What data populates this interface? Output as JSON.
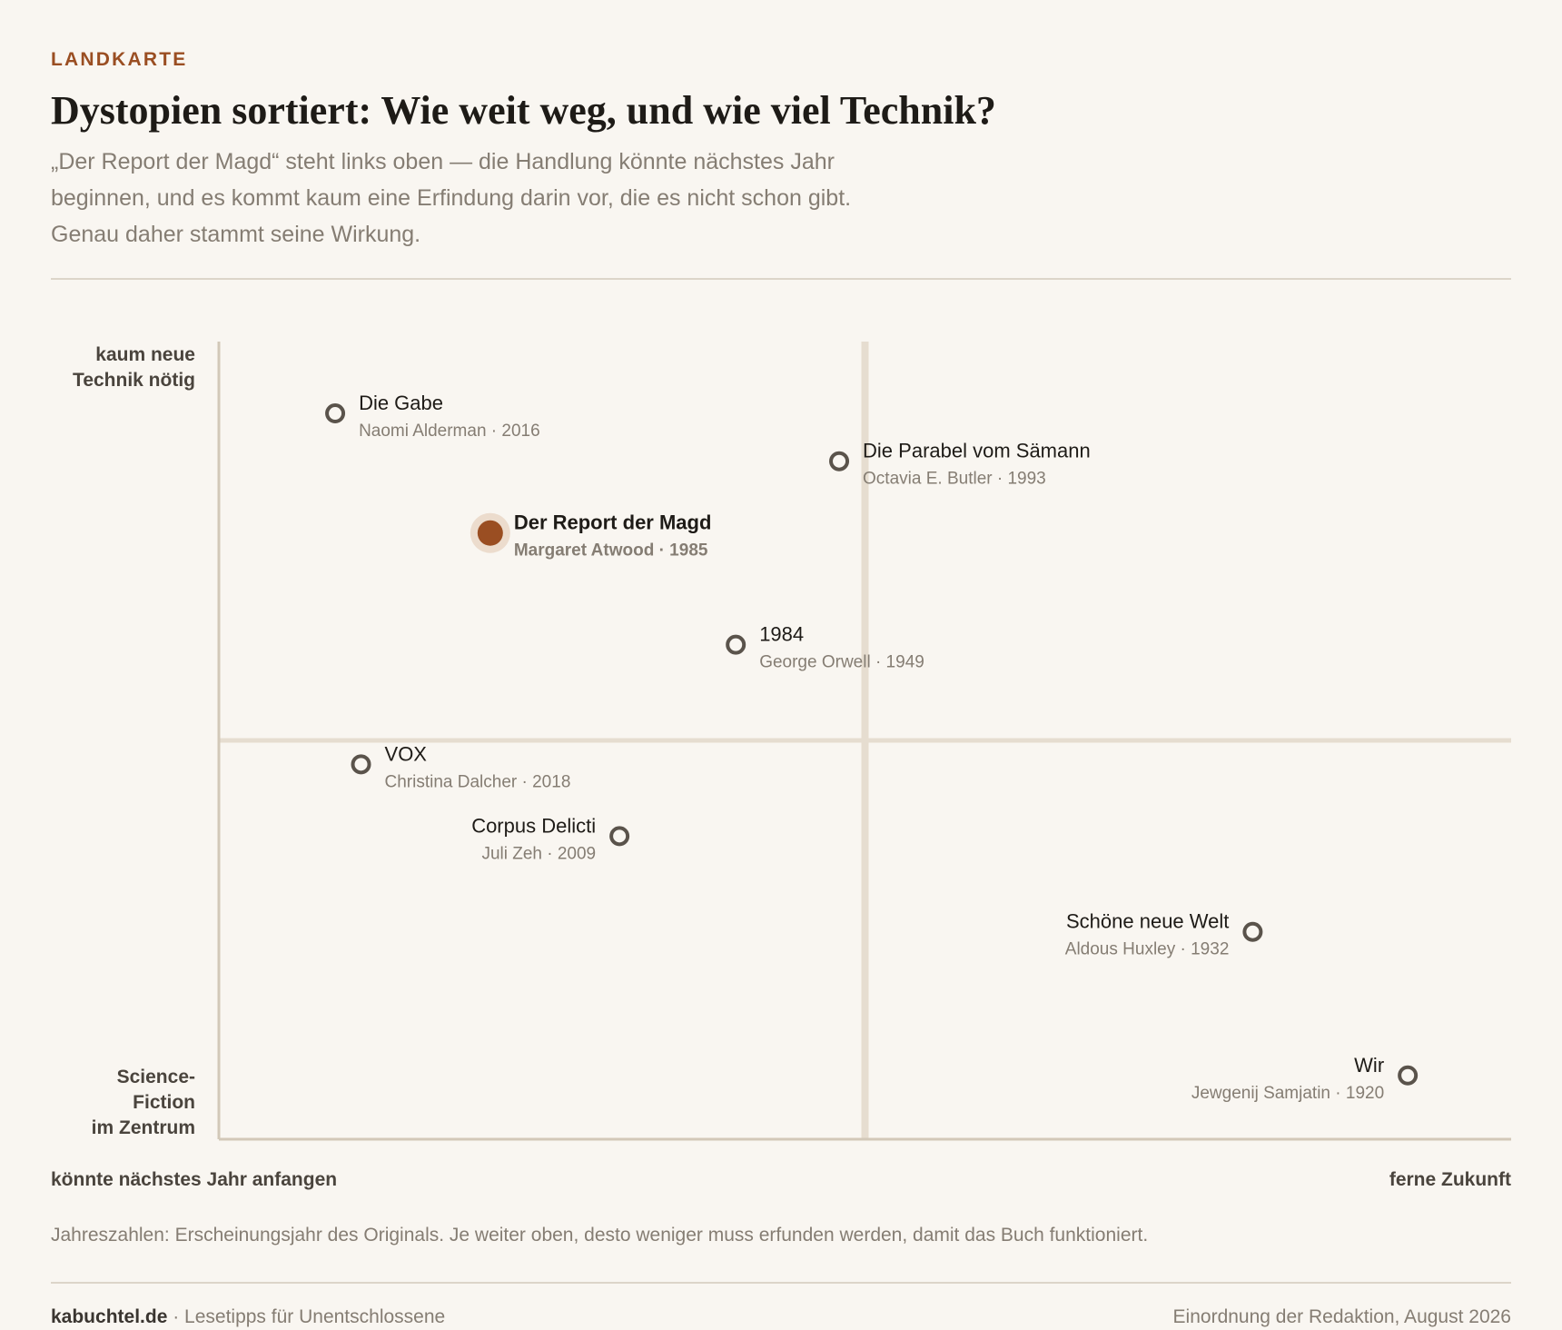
{
  "header": {
    "kicker": "LANDKARTE",
    "title": "Dystopien sortiert: Wie weit weg, und wie viel Technik?",
    "subtitle": "„Der Report der Magd“ steht links oben — die Handlung könnte nächstes Jahr beginnen, und es kommt kaum eine Erfindung darin vor, die es nicht schon gibt. Genau daher stammt seine Wirkung."
  },
  "chart_data": {
    "type": "scatter",
    "title": "",
    "y_axis": {
      "top_label_lines": [
        "kaum neue",
        "Technik nötig"
      ],
      "bottom_label_lines": [
        "Science-",
        "Fiction",
        "im Zentrum"
      ]
    },
    "x_axis": {
      "left_label": "könnte nächstes Jahr anfangen",
      "right_label": "ferne Zukunft"
    },
    "xlim": [
      0,
      100
    ],
    "ylim": [
      0,
      100
    ],
    "midlines": {
      "x": 50,
      "y": 50
    },
    "colors": {
      "highlight": "#9a4e22",
      "highlight_halo": "#ecdccd",
      "point_stroke": "#5a534b",
      "axis": "#d2c8b8",
      "midline": "#e6ddd0",
      "title_text": "#1e1b17",
      "meta_text": "#857d73"
    },
    "points": [
      {
        "title": "Die Gabe",
        "meta": "Naomi Alderman · 2016",
        "x": 9,
        "y": 91,
        "label_side": "right",
        "highlight": false
      },
      {
        "title": "Die Parabel vom Sämann",
        "meta": "Octavia E. Butler · 1993",
        "x": 48,
        "y": 85,
        "label_side": "right",
        "highlight": false
      },
      {
        "title": "Der Report der Magd",
        "meta": "Margaret Atwood · 1985",
        "x": 21,
        "y": 76,
        "label_side": "right",
        "highlight": true
      },
      {
        "title": "1984",
        "meta": "George Orwell · 1949",
        "x": 40,
        "y": 62,
        "label_side": "right",
        "highlight": false
      },
      {
        "title": "VOX",
        "meta": "Christina Dalcher · 2018",
        "x": 11,
        "y": 47,
        "label_side": "right",
        "highlight": false
      },
      {
        "title": "Corpus Delicti",
        "meta": "Juli Zeh · 2009",
        "x": 31,
        "y": 38,
        "label_side": "left",
        "highlight": false
      },
      {
        "title": "Schöne neue Welt",
        "meta": "Aldous Huxley · 1932",
        "x": 80,
        "y": 26,
        "label_side": "left",
        "highlight": false
      },
      {
        "title": "Wir",
        "meta": "Jewgenij Samjatin · 1920",
        "x": 92,
        "y": 8,
        "label_side": "left",
        "highlight": false
      }
    ]
  },
  "note": "Jahreszahlen: Erscheinungsjahr des Originals. Je weiter oben, desto weniger muss erfunden werden, damit das Buch funktioniert.",
  "footer": {
    "site": "kabuchtel.de",
    "tagline": " · Lesetipps für Unentschlossene",
    "credit": "Einordnung der Redaktion, August 2026"
  }
}
